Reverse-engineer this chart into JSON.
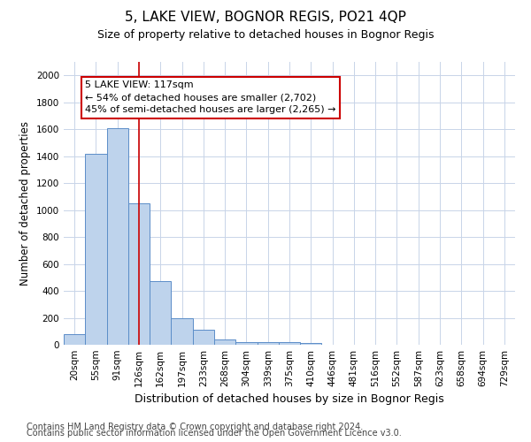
{
  "title": "5, LAKE VIEW, BOGNOR REGIS, PO21 4QP",
  "subtitle": "Size of property relative to detached houses in Bognor Regis",
  "xlabel": "Distribution of detached houses by size in Bognor Regis",
  "ylabel": "Number of detached properties",
  "categories": [
    "20sqm",
    "55sqm",
    "91sqm",
    "126sqm",
    "162sqm",
    "197sqm",
    "233sqm",
    "268sqm",
    "304sqm",
    "339sqm",
    "375sqm",
    "410sqm",
    "446sqm",
    "481sqm",
    "516sqm",
    "552sqm",
    "587sqm",
    "623sqm",
    "658sqm",
    "694sqm",
    "729sqm"
  ],
  "values": [
    80,
    1420,
    1610,
    1050,
    470,
    200,
    110,
    38,
    20,
    20,
    18,
    15,
    0,
    0,
    0,
    0,
    0,
    0,
    0,
    0,
    0
  ],
  "bar_color": "#bed3ec",
  "bar_edge_color": "#5b8dc8",
  "grid_color": "#c8d4e8",
  "background_color": "#ffffff",
  "annotation_text": "5 LAKE VIEW: 117sqm\n← 54% of detached houses are smaller (2,702)\n45% of semi-detached houses are larger (2,265) →",
  "annotation_box_color": "white",
  "annotation_box_edge": "#cc0000",
  "red_line_x": 3.0,
  "ylim": [
    0,
    2100
  ],
  "yticks": [
    0,
    200,
    400,
    600,
    800,
    1000,
    1200,
    1400,
    1600,
    1800,
    2000
  ],
  "footer_line1": "Contains HM Land Registry data © Crown copyright and database right 2024.",
  "footer_line2": "Contains public sector information licensed under the Open Government Licence v3.0.",
  "title_fontsize": 11,
  "subtitle_fontsize": 9,
  "xlabel_fontsize": 9,
  "ylabel_fontsize": 8.5,
  "tick_fontsize": 7.5,
  "footer_fontsize": 7,
  "annot_fontsize": 8
}
